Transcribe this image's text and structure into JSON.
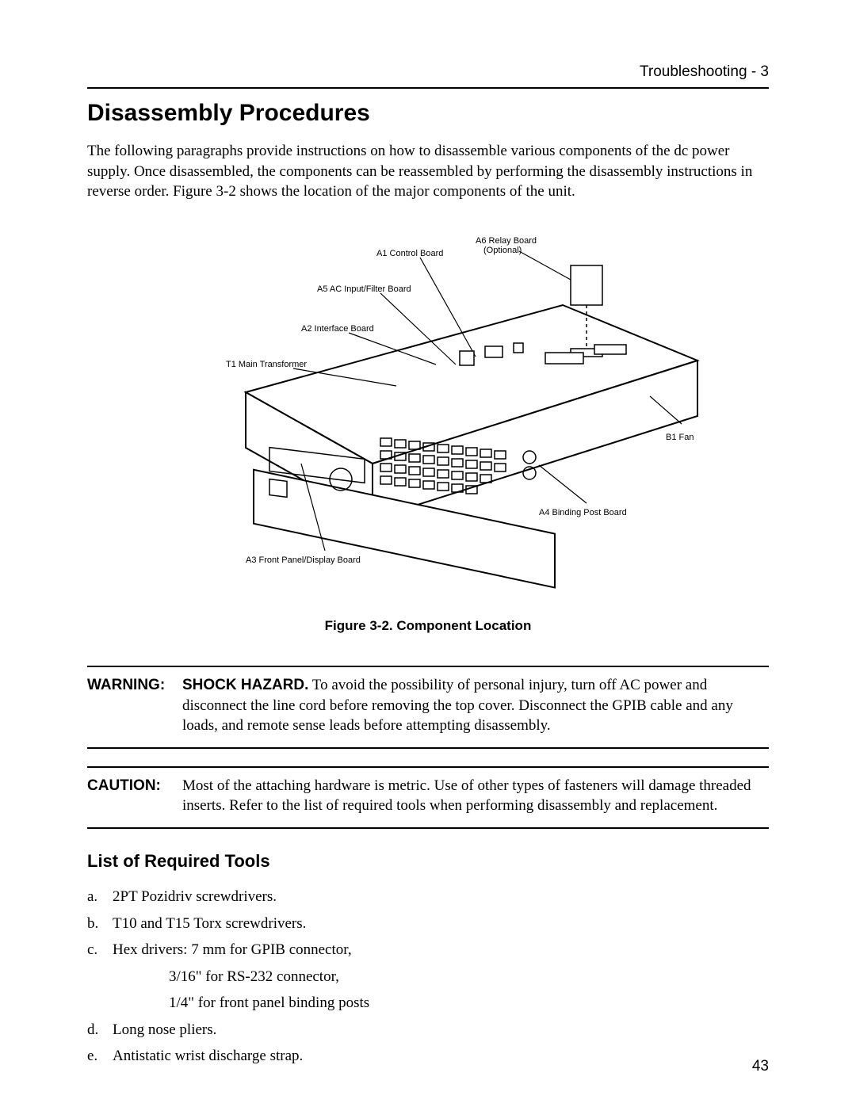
{
  "header": {
    "running_head": "Troubleshooting - 3"
  },
  "section": {
    "title": "Disassembly Procedures",
    "intro": "The following paragraphs provide instructions on how to disassemble various components of  the dc power supply. Once disassembled, the components can be reassembled  by performing the disassembly instructions in reverse order. Figure 3-2 shows the location of the major components of the unit."
  },
  "figure": {
    "caption": "Figure 3-2. Component Location",
    "labels": {
      "a1": "A1 Control Board",
      "a6": "A6 Relay Board",
      "a6_sub": "(Optional)",
      "a5": "A5 AC Input/Filter Board",
      "a2": "A2 Interface Board",
      "t1": "T1 Main Transformer",
      "b1": "B1 Fan",
      "a4": "A4 Binding Post Board",
      "a3": "A3 Front Panel/Display Board"
    }
  },
  "warning": {
    "label": "WARNING:",
    "lead": "SHOCK HAZARD.",
    "text": " To avoid the possibility of personal injury, turn off AC power and disconnect the line cord before removing the top cover. Disconnect the GPIB cable and  any loads, and remote sense leads before attempting disassembly."
  },
  "caution": {
    "label": "CAUTION:",
    "text": "Most of the attaching hardware is metric. Use of other types of fasteners will damage threaded inserts. Refer to the list of required tools when performing disassembly and replacement."
  },
  "tools": {
    "heading": "List of Required Tools",
    "items": [
      {
        "marker": "a.",
        "text": "2PT Pozidriv screwdrivers."
      },
      {
        "marker": "b.",
        "text": "T10 and T15 Torx screwdrivers."
      },
      {
        "marker": "c.",
        "text": "Hex drivers:  7 mm for GPIB connector,"
      },
      {
        "marker": "",
        "text": "3/16\" for RS-232 connector,",
        "sub": true
      },
      {
        "marker": "",
        "text": "1/4\" for front panel binding posts",
        "sub": true
      },
      {
        "marker": "d.",
        "text": "Long nose pliers."
      },
      {
        "marker": "e.",
        "text": "Antistatic wrist discharge strap."
      }
    ]
  },
  "page_number": "43"
}
